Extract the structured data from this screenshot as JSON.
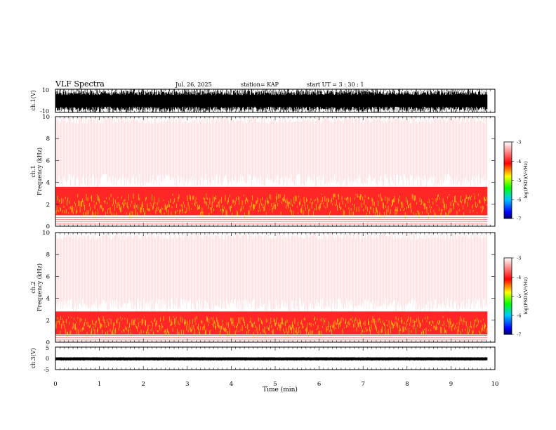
{
  "header": {
    "title": "VLF Spectra",
    "date": "Jul. 26, 2025",
    "station": "station= KAP",
    "start": "start  UT =   3 : 30 : 1"
  },
  "chart_data": [
    {
      "type": "line",
      "panel": "ch1-waveform",
      "ylabel": "ch.1(V)",
      "ylim": [
        -10,
        10
      ],
      "yticks": [
        "10",
        "-10"
      ],
      "xlim": [
        0,
        10
      ],
      "description_values": {
        "amplitude_typical": [
          -9,
          9
        ]
      }
    },
    {
      "type": "heatmap",
      "panel": "ch1-spectrogram",
      "ylabel": "ch.1\nFrequency (kHz)",
      "ylim": [
        0,
        10
      ],
      "yticks": [
        "0",
        "2",
        "4",
        "6",
        "8",
        "10"
      ],
      "xlim": [
        0,
        9.83
      ],
      "intense_band_khz": [
        1.0,
        3.6
      ],
      "peak_band_khz": [
        1.2,
        3.0
      ],
      "colorbar": {
        "label": "log(PSD)(V²/Hz)",
        "range": [
          -7,
          -3
        ],
        "ticks": [
          "-3",
          "-4",
          "-5",
          "-6",
          "-7"
        ]
      }
    },
    {
      "type": "heatmap",
      "panel": "ch2-spectrogram",
      "ylabel": "ch.2\nFrequency (kHz)",
      "ylim": [
        0,
        10
      ],
      "yticks": [
        "0",
        "2",
        "4",
        "6",
        "8",
        "10"
      ],
      "xlim": [
        0,
        9.83
      ],
      "intense_band_khz": [
        0.7,
        2.8
      ],
      "peak_band_khz": [
        0.9,
        2.4
      ],
      "colorbar": {
        "label": "log(PSD)(V²/Hz)",
        "range": [
          -7,
          -3
        ],
        "ticks": [
          "-3",
          "-4",
          "-5",
          "-6",
          "-7"
        ]
      }
    },
    {
      "type": "line",
      "panel": "ch3-waveform",
      "ylabel": "ch.3(V)",
      "ylim": [
        -5,
        5
      ],
      "yticks": [
        "5",
        "0",
        "-5"
      ],
      "xlim": [
        0,
        10
      ],
      "description_values": {
        "amplitude_typical": [
          -1,
          0.5
        ]
      }
    }
  ],
  "x_axis": {
    "label": "Time (min)",
    "ticks": [
      "0",
      "1",
      "2",
      "3",
      "4",
      "5",
      "6",
      "7",
      "8",
      "9",
      "10"
    ],
    "range": [
      0,
      10
    ]
  },
  "colors": {
    "background": "#ffffff",
    "heat_low": "#ffffff",
    "heat_mid": "#ff0000",
    "heat_high": "#ffff00"
  }
}
